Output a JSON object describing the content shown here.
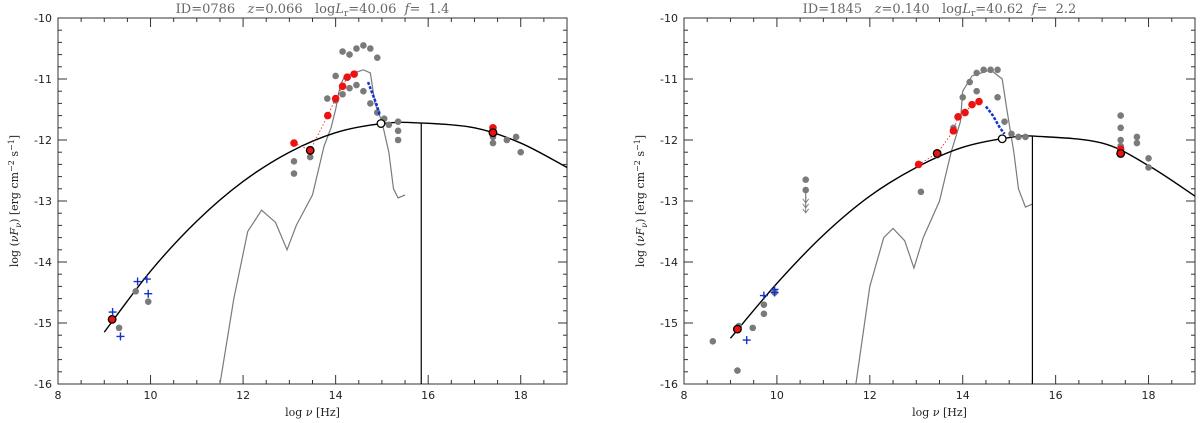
{
  "chart_data": [
    {
      "type": "scatter",
      "title": "ID=0786   z=0.066   logL_r=40.06  f=  1.4",
      "xlabel": "log ν [Hz]",
      "ylabel": "log (νF_ν) [erg cm^-2 s^-1]",
      "xlim": [
        8,
        19
      ],
      "ylim": [
        -16,
        -10
      ],
      "xticks": [
        8,
        10,
        12,
        14,
        16,
        18
      ],
      "yticks": [
        -16,
        -15,
        -14,
        -13,
        -12,
        -11,
        -10
      ],
      "grid": false,
      "colors": {
        "fit": "#000000",
        "gray": "#7a7a7a",
        "red": "#ee1111",
        "blue": "#1133cc"
      },
      "fit_curve": [
        [
          9.0,
          -15.15
        ],
        [
          10,
          -14.15
        ],
        [
          11,
          -13.33
        ],
        [
          12,
          -12.68
        ],
        [
          13,
          -12.2
        ],
        [
          14,
          -11.88
        ],
        [
          15,
          -11.73
        ],
        [
          15.8,
          -11.72
        ],
        [
          17,
          -11.8
        ],
        [
          18,
          -12.05
        ],
        [
          19,
          -12.45
        ]
      ],
      "vertical_line_x": 15.85,
      "host_template": [
        [
          11.5,
          -16.0
        ],
        [
          11.8,
          -14.6
        ],
        [
          12.1,
          -13.5
        ],
        [
          12.4,
          -13.15
        ],
        [
          12.7,
          -13.35
        ],
        [
          12.95,
          -13.8
        ],
        [
          13.15,
          -13.4
        ],
        [
          13.5,
          -12.9
        ],
        [
          13.75,
          -12.1
        ],
        [
          13.9,
          -11.8
        ],
        [
          14.0,
          -11.5
        ],
        [
          14.1,
          -11.1
        ],
        [
          14.2,
          -10.95
        ],
        [
          14.4,
          -10.9
        ],
        [
          14.6,
          -10.85
        ],
        [
          14.75,
          -10.9
        ],
        [
          14.85,
          -11.4
        ],
        [
          15.0,
          -11.7
        ],
        [
          15.15,
          -12.2
        ],
        [
          15.25,
          -12.8
        ],
        [
          15.35,
          -12.95
        ],
        [
          15.5,
          -12.9
        ]
      ],
      "gray_points": [
        [
          9.32,
          -15.08
        ],
        [
          9.68,
          -14.48
        ],
        [
          9.95,
          -14.65
        ],
        [
          13.1,
          -12.35
        ],
        [
          13.1,
          -12.55
        ],
        [
          13.45,
          -12.28
        ],
        [
          13.82,
          -11.32
        ],
        [
          14.0,
          -10.95
        ],
        [
          14.0,
          -11.35
        ],
        [
          14.15,
          -10.55
        ],
        [
          14.15,
          -11.25
        ],
        [
          14.3,
          -10.6
        ],
        [
          14.3,
          -11.15
        ],
        [
          14.45,
          -10.5
        ],
        [
          14.45,
          -11.1
        ],
        [
          14.6,
          -10.45
        ],
        [
          14.6,
          -11.2
        ],
        [
          14.75,
          -10.5
        ],
        [
          14.75,
          -11.4
        ],
        [
          14.9,
          -10.65
        ],
        [
          14.9,
          -11.55
        ],
        [
          15.05,
          -11.65
        ],
        [
          15.15,
          -11.75
        ],
        [
          15.35,
          -11.7
        ],
        [
          15.35,
          -11.85
        ],
        [
          15.35,
          -12.0
        ],
        [
          17.4,
          -11.8
        ],
        [
          17.4,
          -11.95
        ],
        [
          17.4,
          -12.05
        ],
        [
          17.7,
          -12.0
        ],
        [
          17.9,
          -11.95
        ],
        [
          18.0,
          -12.2
        ]
      ],
      "red_points": [
        [
          9.17,
          -14.94
        ],
        [
          13.1,
          -12.05
        ],
        [
          13.45,
          -12.17
        ],
        [
          13.83,
          -11.6
        ],
        [
          14.0,
          -11.32
        ],
        [
          14.15,
          -11.12
        ],
        [
          14.25,
          -10.97
        ],
        [
          14.4,
          -10.92
        ],
        [
          17.4,
          -11.8
        ],
        [
          17.4,
          -11.88
        ]
      ],
      "black_circles_filled": [
        [
          9.17,
          -14.94
        ],
        [
          13.45,
          -12.17
        ],
        [
          17.4,
          -11.88
        ]
      ],
      "open_circles": [
        [
          14.98,
          -11.73
        ]
      ],
      "blue_crosses": [
        [
          9.18,
          -14.82
        ],
        [
          9.35,
          -15.22
        ],
        [
          9.72,
          -14.32
        ],
        [
          9.92,
          -14.28
        ],
        [
          9.95,
          -14.52
        ]
      ],
      "blue_segment": [
        [
          14.7,
          -11.05
        ],
        [
          14.8,
          -11.25
        ],
        [
          14.9,
          -11.45
        ],
        [
          14.95,
          -11.6
        ]
      ]
    },
    {
      "type": "scatter",
      "title": "ID=1845   z=0.140   logL_r=40.62  f=  2.2",
      "xlabel": "log ν [Hz]",
      "ylabel": "log (νF_ν) [erg cm^-2 s^-1]",
      "xlim": [
        8,
        19
      ],
      "ylim": [
        -16,
        -10
      ],
      "xticks": [
        8,
        10,
        12,
        14,
        16,
        18
      ],
      "yticks": [
        -16,
        -15,
        -14,
        -13,
        -12,
        -11,
        -10
      ],
      "grid": false,
      "colors": {
        "fit": "#000000",
        "gray": "#7a7a7a",
        "red": "#ee1111",
        "blue": "#1133cc"
      },
      "fit_curve": [
        [
          9.0,
          -15.25
        ],
        [
          10,
          -14.35
        ],
        [
          11,
          -13.56
        ],
        [
          12,
          -12.92
        ],
        [
          13,
          -12.45
        ],
        [
          14,
          -12.12
        ],
        [
          15,
          -11.96
        ],
        [
          15.6,
          -11.94
        ],
        [
          17,
          -12.05
        ],
        [
          18,
          -12.42
        ],
        [
          19,
          -12.92
        ]
      ],
      "vertical_line_x": 15.5,
      "host_template": [
        [
          11.7,
          -16.0
        ],
        [
          12.0,
          -14.4
        ],
        [
          12.3,
          -13.6
        ],
        [
          12.5,
          -13.45
        ],
        [
          12.75,
          -13.65
        ],
        [
          12.95,
          -14.1
        ],
        [
          13.15,
          -13.6
        ],
        [
          13.5,
          -13.0
        ],
        [
          13.75,
          -12.2
        ],
        [
          13.95,
          -11.7
        ],
        [
          14.0,
          -11.2
        ],
        [
          14.2,
          -10.95
        ],
        [
          14.4,
          -10.9
        ],
        [
          14.6,
          -10.85
        ],
        [
          14.85,
          -11.0
        ],
        [
          14.95,
          -11.5
        ],
        [
          15.1,
          -12.2
        ],
        [
          15.2,
          -12.8
        ],
        [
          15.35,
          -13.1
        ],
        [
          15.5,
          -13.05
        ]
      ],
      "gray_points": [
        [
          8.62,
          -15.3
        ],
        [
          9.15,
          -15.78
        ],
        [
          9.18,
          -15.05
        ],
        [
          9.48,
          -15.08
        ],
        [
          9.72,
          -14.7
        ],
        [
          9.72,
          -14.85
        ],
        [
          9.95,
          -14.5
        ],
        [
          10.62,
          -12.65
        ],
        [
          10.62,
          -12.82
        ],
        [
          13.1,
          -12.85
        ],
        [
          13.45,
          -12.25
        ],
        [
          13.8,
          -11.8
        ],
        [
          14.0,
          -11.3
        ],
        [
          14.15,
          -11.05
        ],
        [
          14.3,
          -10.9
        ],
        [
          14.3,
          -11.2
        ],
        [
          14.45,
          -10.85
        ],
        [
          14.6,
          -10.85
        ],
        [
          14.75,
          -10.85
        ],
        [
          14.75,
          -11.3
        ],
        [
          14.9,
          -11.7
        ],
        [
          15.05,
          -11.9
        ],
        [
          15.2,
          -11.95
        ],
        [
          15.35,
          -11.95
        ],
        [
          17.4,
          -11.6
        ],
        [
          17.4,
          -11.8
        ],
        [
          17.4,
          -12.0
        ],
        [
          17.4,
          -12.1
        ],
        [
          17.75,
          -11.95
        ],
        [
          17.75,
          -12.05
        ],
        [
          18.0,
          -12.3
        ],
        [
          18.0,
          -12.45
        ]
      ],
      "red_points": [
        [
          9.15,
          -15.1
        ],
        [
          13.05,
          -12.4
        ],
        [
          13.45,
          -12.22
        ],
        [
          13.8,
          -11.85
        ],
        [
          13.9,
          -11.62
        ],
        [
          14.05,
          -11.55
        ],
        [
          14.2,
          -11.42
        ],
        [
          14.35,
          -11.37
        ],
        [
          17.4,
          -12.15
        ],
        [
          17.4,
          -12.22
        ]
      ],
      "black_circles_filled": [
        [
          9.15,
          -15.1
        ],
        [
          13.45,
          -12.22
        ],
        [
          17.4,
          -12.22
        ]
      ],
      "open_circles": [
        [
          14.85,
          -11.98
        ]
      ],
      "blue_crosses": [
        [
          9.35,
          -15.28
        ],
        [
          9.72,
          -14.55
        ],
        [
          9.95,
          -14.5
        ],
        [
          9.95,
          -14.45
        ]
      ],
      "blue_segment": [
        [
          14.5,
          -11.45
        ],
        [
          14.65,
          -11.6
        ],
        [
          14.8,
          -11.8
        ],
        [
          14.9,
          -11.9
        ]
      ],
      "upper_limit_arrows": [
        [
          10.62,
          -12.9
        ]
      ]
    }
  ]
}
